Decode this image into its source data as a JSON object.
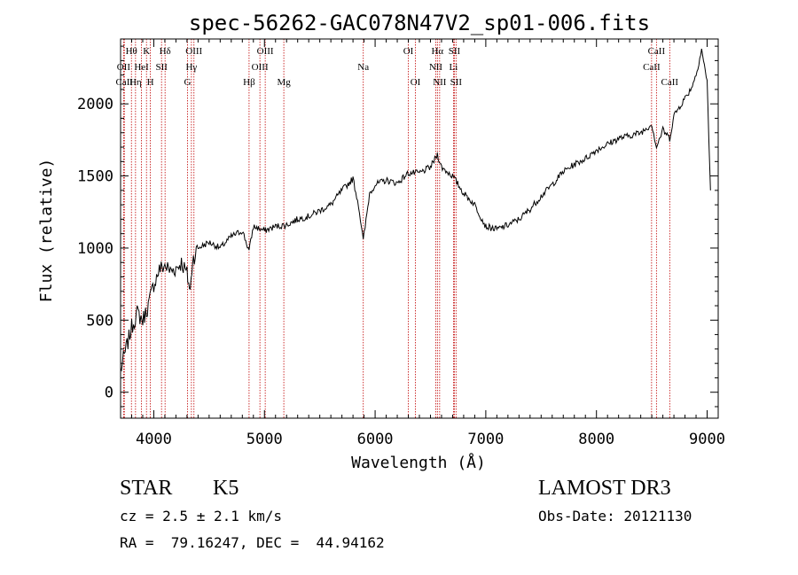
{
  "chart_data": {
    "type": "line",
    "title": "spec-56262-GAC078N47V2_sp01-006.fits",
    "xlabel": "Wavelength (Å)",
    "ylabel": "Flux (relative)",
    "xlim": [
      3700,
      9100
    ],
    "ylim": [
      -180,
      2450
    ],
    "xticks": [
      4000,
      5000,
      6000,
      7000,
      8000,
      9000
    ],
    "yticks": [
      0,
      500,
      1000,
      1500,
      2000
    ],
    "series": [
      {
        "name": "flux",
        "x": [
          3700,
          3750,
          3800,
          3850,
          3900,
          3950,
          4000,
          4050,
          4100,
          4150,
          4200,
          4250,
          4300,
          4330,
          4350,
          4400,
          4450,
          4500,
          4600,
          4700,
          4800,
          4861,
          4900,
          5000,
          5100,
          5200,
          5300,
          5400,
          5500,
          5600,
          5700,
          5800,
          5850,
          5893,
          5950,
          6000,
          6100,
          6200,
          6300,
          6400,
          6500,
          6563,
          6600,
          6700,
          6800,
          6900,
          7000,
          7100,
          7200,
          7300,
          7400,
          7500,
          7600,
          7700,
          7800,
          7900,
          8000,
          8100,
          8200,
          8300,
          8400,
          8500,
          8542,
          8600,
          8662,
          8700,
          8800,
          8850,
          8900,
          8950,
          9000,
          9030
        ],
        "y": [
          150,
          300,
          450,
          550,
          500,
          600,
          750,
          850,
          880,
          840,
          860,
          900,
          820,
          700,
          920,
          1000,
          1020,
          1040,
          1000,
          1080,
          1120,
          980,
          1150,
          1120,
          1150,
          1160,
          1200,
          1220,
          1260,
          1300,
          1400,
          1480,
          1300,
          1050,
          1380,
          1440,
          1470,
          1450,
          1520,
          1520,
          1560,
          1650,
          1560,
          1500,
          1380,
          1300,
          1150,
          1130,
          1160,
          1200,
          1270,
          1360,
          1440,
          1530,
          1580,
          1620,
          1680,
          1720,
          1760,
          1780,
          1800,
          1860,
          1700,
          1820,
          1760,
          1920,
          2040,
          2100,
          2200,
          2380,
          2150,
          1400
        ]
      }
    ],
    "lines": [
      {
        "label": "Hθ",
        "wavelength": 3798,
        "row": 0
      },
      {
        "label": "OII",
        "wavelength": 3727,
        "row": 1
      },
      {
        "label": "CaII",
        "wavelength": 3734,
        "row": 2
      },
      {
        "label": "Hη",
        "wavelength": 3835,
        "row": 2
      },
      {
        "label": "K",
        "wavelength": 3934,
        "row": 0
      },
      {
        "label": "HeI",
        "wavelength": 3889,
        "row": 1
      },
      {
        "label": "H",
        "wavelength": 3969,
        "row": 2
      },
      {
        "label": "Hδ",
        "wavelength": 4102,
        "row": 0
      },
      {
        "label": "SII",
        "wavelength": 4070,
        "row": 1
      },
      {
        "label": "OIII",
        "wavelength": 4363,
        "row": 0
      },
      {
        "label": "Hγ",
        "wavelength": 4340,
        "row": 1
      },
      {
        "label": "G",
        "wavelength": 4305,
        "row": 2
      },
      {
        "label": "Hβ",
        "wavelength": 4861,
        "row": 2
      },
      {
        "label": "OIII",
        "wavelength": 5007,
        "row": 0
      },
      {
        "label": "OIII",
        "wavelength": 4959,
        "row": 1
      },
      {
        "label": "Mg",
        "wavelength": 5175,
        "row": 2
      },
      {
        "label": "Na",
        "wavelength": 5893,
        "row": 1
      },
      {
        "label": "OI",
        "wavelength": 6300,
        "row": 0
      },
      {
        "label": "OI",
        "wavelength": 6364,
        "row": 2
      },
      {
        "label": "Hα",
        "wavelength": 6563,
        "row": 0
      },
      {
        "label": "NII",
        "wavelength": 6548,
        "row": 1
      },
      {
        "label": "NII",
        "wavelength": 6583,
        "row": 2
      },
      {
        "label": "SII",
        "wavelength": 6716,
        "row": 0
      },
      {
        "label": "Li",
        "wavelength": 6708,
        "row": 1
      },
      {
        "label": "SII",
        "wavelength": 6731,
        "row": 2
      },
      {
        "label": "CaII",
        "wavelength": 8542,
        "row": 0
      },
      {
        "label": "CaII",
        "wavelength": 8498,
        "row": 1
      },
      {
        "label": "CaII",
        "wavelength": 8662,
        "row": 2
      }
    ],
    "line_color": "#c00000"
  },
  "info": {
    "class": "STAR",
    "subclass": "K5",
    "cz": "cz = 2.5 ± 2.1 km/s",
    "radec": "RA =  79.16247, DEC =  44.94162",
    "survey": "LAMOST DR3",
    "obs_date": "Obs-Date: 20121130"
  }
}
